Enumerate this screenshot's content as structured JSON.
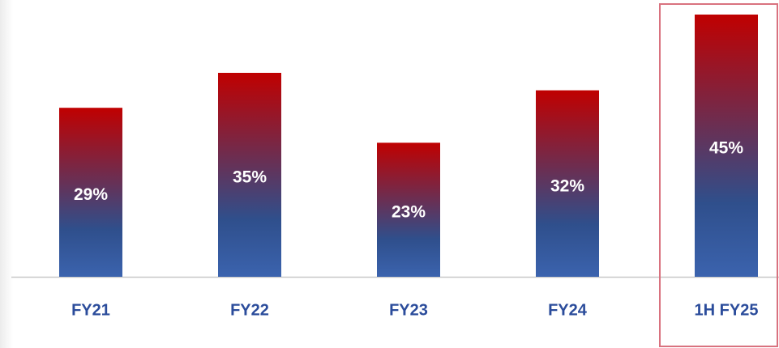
{
  "chart_data": {
    "type": "bar",
    "categories": [
      "FY21",
      "FY22",
      "FY23",
      "FY24",
      "1H FY25"
    ],
    "values": [
      29,
      35,
      23,
      32,
      45
    ],
    "value_labels": [
      "29%",
      "35%",
      "23%",
      "32%",
      "45%"
    ],
    "colors": [
      "#c00000",
      "#2f4f8c",
      "#3b63ae"
    ],
    "label_color": "#2b4c9b",
    "ylim": [
      0,
      47.5
    ]
  }
}
